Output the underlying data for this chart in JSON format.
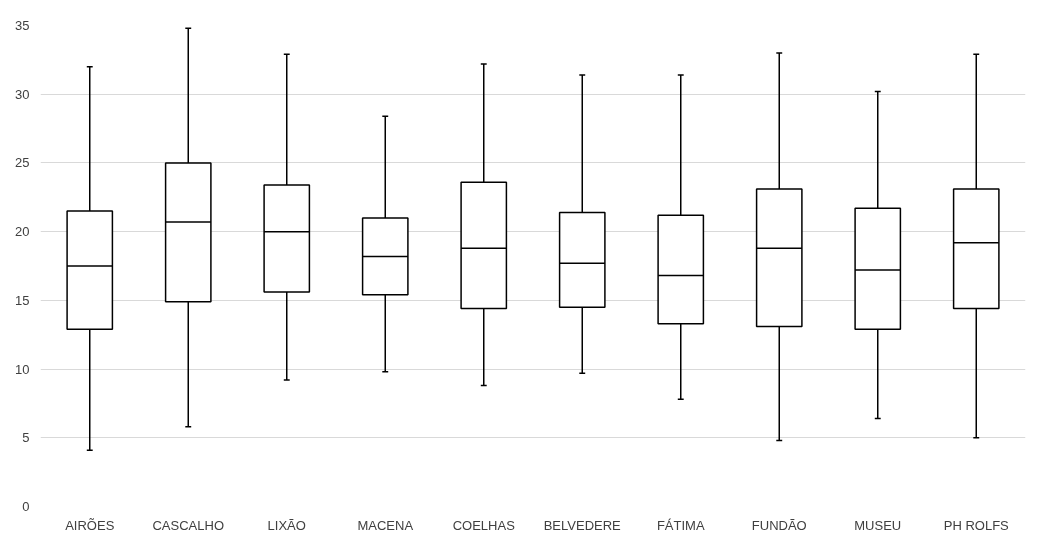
{
  "chart_data": {
    "type": "box",
    "categories": [
      "AIRÕES",
      "CASCALHO",
      "LIXÃO",
      "MACENA",
      "COELHAS",
      "BELVEDERE",
      "FÁTIMA",
      "FUNDÃO",
      "MUSEU",
      "PH ROLFS"
    ],
    "boxes": [
      {
        "low": 4.1,
        "q1": 12.9,
        "median": 17.5,
        "q3": 21.5,
        "high": 32.0
      },
      {
        "low": 5.8,
        "q1": 14.9,
        "median": 20.7,
        "q3": 25.0,
        "high": 34.8
      },
      {
        "low": 9.2,
        "q1": 15.6,
        "median": 20.0,
        "q3": 23.4,
        "high": 32.9
      },
      {
        "low": 9.8,
        "q1": 15.4,
        "median": 18.2,
        "q3": 21.0,
        "high": 28.4
      },
      {
        "low": 8.8,
        "q1": 14.4,
        "median": 18.8,
        "q3": 23.6,
        "high": 32.2
      },
      {
        "low": 9.7,
        "q1": 14.5,
        "median": 17.7,
        "q3": 21.4,
        "high": 31.4
      },
      {
        "low": 7.8,
        "q1": 13.3,
        "median": 16.8,
        "q3": 21.2,
        "high": 31.4
      },
      {
        "low": 4.8,
        "q1": 13.1,
        "median": 18.8,
        "q3": 23.1,
        "high": 33.0
      },
      {
        "low": 6.4,
        "q1": 12.9,
        "median": 17.2,
        "q3": 21.7,
        "high": 30.2
      },
      {
        "low": 5.0,
        "q1": 14.4,
        "median": 19.2,
        "q3": 23.1,
        "high": 32.9
      }
    ],
    "color": "#000000",
    "ylim": [
      0,
      35
    ],
    "yticks": [
      0,
      5,
      10,
      15,
      20,
      25,
      30,
      35
    ],
    "grid": "y"
  }
}
